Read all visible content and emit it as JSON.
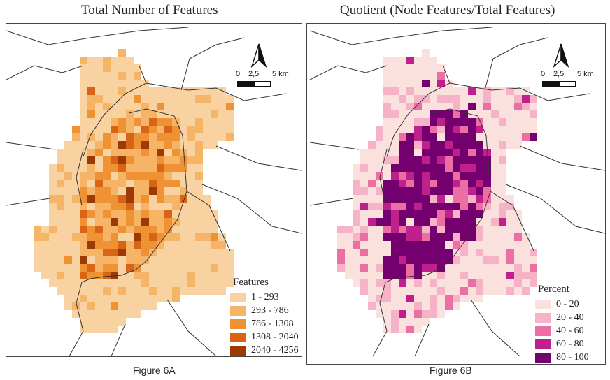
{
  "panels": [
    {
      "id": "A",
      "title": "Total Number of Features",
      "caption": "Figure 6A",
      "scale": {
        "labels": [
          "0",
          "2,5",
          "5 km"
        ]
      },
      "legend": {
        "title": "Features",
        "items": [
          {
            "label": "1 - 293",
            "color": "#f9d2a2"
          },
          {
            "label": "293 - 786",
            "color": "#f5b466"
          },
          {
            "label": "786 - 1308",
            "color": "#ee9233"
          },
          {
            "label": "1308 - 2040",
            "color": "#d86515"
          },
          {
            "label": "2040 - 4256",
            "color": "#9c3a06"
          }
        ]
      }
    },
    {
      "id": "B",
      "title": "Quotient (Node Features/Total Features)",
      "caption": "Figure 6B",
      "scale": {
        "labels": [
          "0",
          "2,5",
          "5 km"
        ]
      },
      "legend": {
        "title": "Percent",
        "items": [
          {
            "label": "0 - 20",
            "color": "#fbe1de"
          },
          {
            "label": "20 - 40",
            "color": "#f6b2c6"
          },
          {
            "label": "40 - 60",
            "color": "#ec6fa4"
          },
          {
            "label": "60 - 80",
            "color": "#c0208c"
          },
          {
            "label": "80 - 100",
            "color": "#74006f"
          }
        ]
      }
    }
  ]
}
